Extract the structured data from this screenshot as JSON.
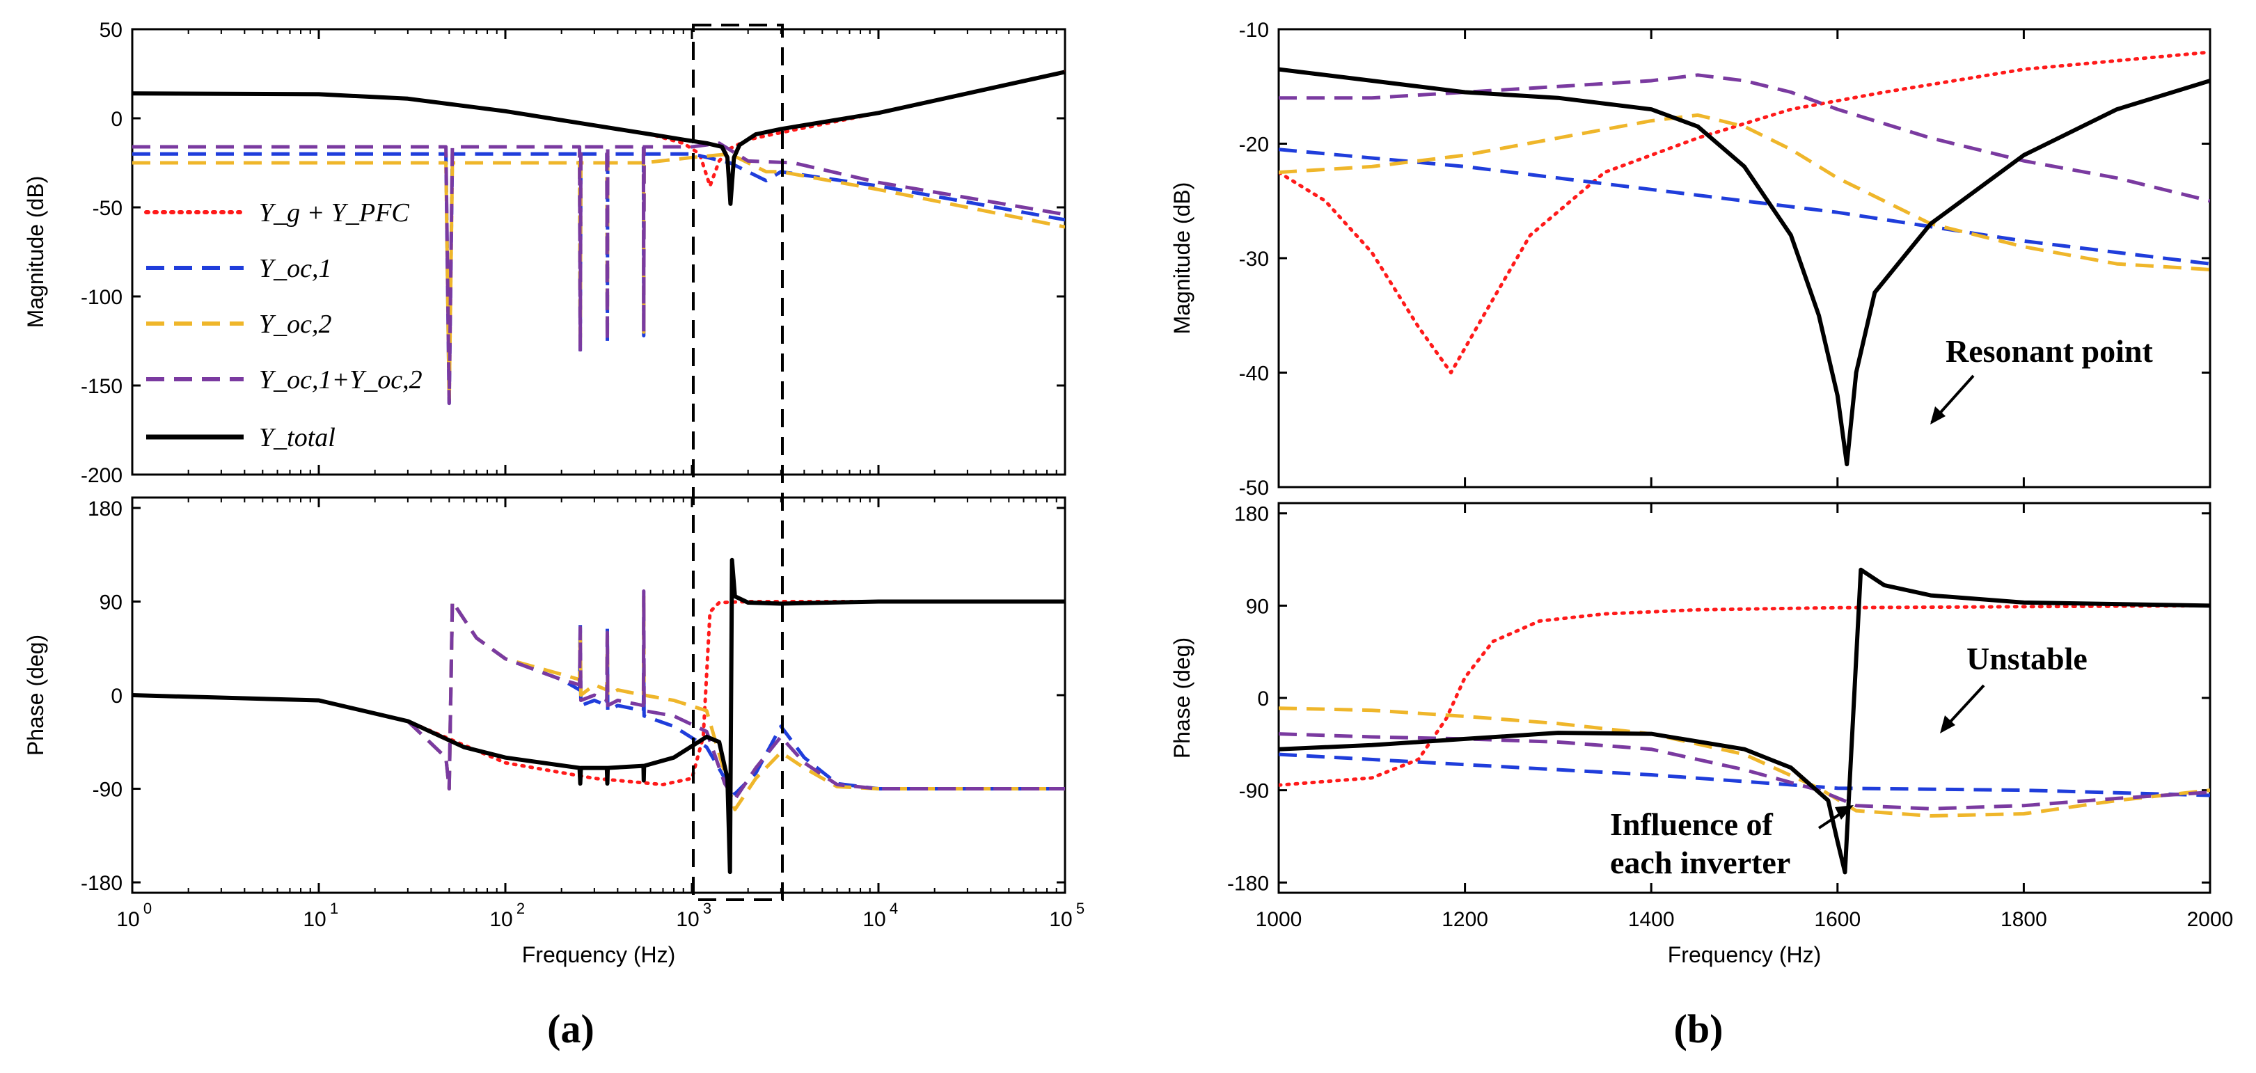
{
  "colors": {
    "grid_red": "#ff1a1a",
    "inv1_blue": "#1f3ddb",
    "inv2_yellow": "#efb62a",
    "sum_purple": "#7a3aa0",
    "total_black": "#000000"
  },
  "legend": [
    {
      "label": "Y_g + Y_PFC",
      "series": "grid_red"
    },
    {
      "label": "Y_oc,1",
      "series": "inv1_blue"
    },
    {
      "label": "Y_oc,2",
      "series": "inv2_yellow"
    },
    {
      "label": "Y_oc,1+Y_oc,2",
      "series": "sum_purple"
    },
    {
      "label": "Y_total",
      "series": "total_black"
    }
  ],
  "chart_data": [
    {
      "id": "a_mag",
      "type": "line",
      "xscale": "log",
      "xlim": [
        1,
        100000
      ],
      "ylim": [
        -200,
        50
      ],
      "ylabel": "Magnitude (dB)",
      "xlabel": "",
      "yticks": [
        "50",
        "0",
        "-50",
        "-100",
        "-150",
        "-200"
      ],
      "series": [
        {
          "name": "Y_g + Y_PFC",
          "color": "grid_red",
          "dash": "dot",
          "x": [
            1,
            10,
            30,
            100,
            300,
            600,
            900,
            1100,
            1250,
            1400,
            1600,
            2000,
            3000,
            10000,
            100000
          ],
          "y": [
            14,
            13.5,
            11,
            4,
            -4,
            -9,
            -14,
            -20,
            -38,
            -24,
            -17,
            -12,
            -8,
            3,
            26
          ]
        },
        {
          "name": "Y_oc,1",
          "color": "inv1_blue",
          "dash": "dash",
          "x": [
            1,
            48,
            50,
            52,
            100,
            250,
            252,
            254,
            350,
            352,
            354,
            550,
            552,
            554,
            1000,
            1600,
            2500,
            3000,
            10000,
            100000
          ],
          "y": [
            -20,
            -20,
            -160,
            -20,
            -20,
            -20,
            -132,
            -20,
            -20,
            -127,
            -20,
            -20,
            -122,
            -20,
            -20,
            -25,
            -35,
            -30,
            -38,
            -57
          ]
        },
        {
          "name": "Y_oc,2",
          "color": "inv2_yellow",
          "dash": "dash",
          "x": [
            1,
            48,
            50,
            52,
            100,
            250,
            252,
            254,
            350,
            352,
            354,
            550,
            552,
            554,
            1000,
            1600,
            2500,
            3000,
            10000,
            100000
          ],
          "y": [
            -25,
            -25,
            -160,
            -25,
            -25,
            -25,
            -130,
            -25,
            -25,
            -125,
            -25,
            -25,
            -120,
            -25,
            -22,
            -20,
            -30,
            -30,
            -40,
            -61
          ]
        },
        {
          "name": "Y_oc,1+Y_oc,2",
          "color": "sum_purple",
          "dash": "dash",
          "x": [
            1,
            48,
            50,
            52,
            100,
            250,
            252,
            254,
            350,
            352,
            354,
            550,
            552,
            554,
            1000,
            1400,
            2000,
            3500,
            10000,
            100000
          ],
          "y": [
            -16,
            -16,
            -160,
            -16,
            -16,
            -16,
            -130,
            -16,
            -16,
            -125,
            -16,
            -16,
            -120,
            -16,
            -16,
            -14,
            -24,
            -25,
            -36,
            -54
          ]
        },
        {
          "name": "Y_total",
          "color": "total_black",
          "dash": "solid",
          "x": [
            1,
            10,
            30,
            100,
            300,
            600,
            900,
            1200,
            1450,
            1550,
            1610,
            1680,
            1800,
            2200,
            3000,
            10000,
            100000
          ],
          "y": [
            14,
            13.5,
            11,
            4,
            -4,
            -9,
            -12,
            -14,
            -16,
            -22,
            -48,
            -22,
            -15,
            -9,
            -6,
            3,
            26
          ]
        }
      ]
    },
    {
      "id": "a_phase",
      "type": "line",
      "xscale": "log",
      "xlim": [
        1,
        100000
      ],
      "ylim": [
        -190,
        190
      ],
      "ylabel": "Phase (deg)",
      "xlabel": "Frequency  (Hz)",
      "yticks": [
        "180",
        "90",
        "0",
        "-90",
        "-180"
      ],
      "series": [
        {
          "name": "Y_g + Y_PFC",
          "color": "grid_red",
          "dash": "dot",
          "x": [
            1,
            10,
            30,
            100,
            300,
            700,
            1000,
            1150,
            1250,
            1400,
            2000,
            10000,
            100000
          ],
          "y": [
            0,
            -5,
            -25,
            -65,
            -80,
            -86,
            -80,
            -40,
            80,
            89,
            90,
            90,
            90
          ]
        },
        {
          "name": "Y_oc,1",
          "color": "inv1_blue",
          "dash": "dash",
          "x": [
            1,
            10,
            30,
            48,
            50,
            52,
            70,
            100,
            200,
            250,
            252,
            254,
            300,
            350,
            352,
            354,
            400,
            550,
            552,
            554,
            800,
            1200,
            1500,
            1700,
            2200,
            3000,
            4000,
            6000,
            10000,
            100000
          ],
          "y": [
            0,
            -5,
            -25,
            -60,
            -90,
            90,
            55,
            35,
            15,
            5,
            70,
            -10,
            -5,
            -10,
            65,
            -15,
            -10,
            -15,
            30,
            -20,
            -30,
            -50,
            -80,
            -95,
            -75,
            -30,
            -60,
            -85,
            -90,
            -90
          ]
        },
        {
          "name": "Y_oc,2",
          "color": "inv2_yellow",
          "dash": "dash",
          "x": [
            1,
            10,
            30,
            48,
            50,
            52,
            70,
            100,
            200,
            250,
            252,
            254,
            300,
            350,
            352,
            354,
            400,
            550,
            552,
            554,
            800,
            1200,
            1500,
            1700,
            2200,
            3000,
            4000,
            6000,
            10000,
            100000
          ],
          "y": [
            0,
            -5,
            -25,
            -60,
            -90,
            90,
            55,
            35,
            20,
            15,
            60,
            0,
            10,
            5,
            60,
            0,
            5,
            0,
            95,
            0,
            -5,
            -15,
            -75,
            -110,
            -80,
            -55,
            -70,
            -88,
            -90,
            -90
          ]
        },
        {
          "name": "Y_oc,1+Y_oc,2",
          "color": "sum_purple",
          "dash": "dash",
          "x": [
            1,
            10,
            30,
            48,
            50,
            52,
            70,
            100,
            200,
            250,
            252,
            254,
            300,
            350,
            352,
            354,
            400,
            550,
            552,
            554,
            800,
            1200,
            1500,
            1700,
            2200,
            3000,
            4000,
            6000,
            10000,
            100000
          ],
          "y": [
            0,
            -5,
            -25,
            -60,
            -90,
            90,
            55,
            35,
            15,
            10,
            65,
            -5,
            0,
            -5,
            60,
            -10,
            -5,
            -10,
            100,
            -15,
            -20,
            -35,
            -85,
            -100,
            -70,
            -40,
            -65,
            -86,
            -90,
            -90
          ]
        },
        {
          "name": "Y_total",
          "color": "total_black",
          "dash": "solid",
          "x": [
            1,
            10,
            30,
            60,
            100,
            250,
            252,
            254,
            350,
            352,
            354,
            550,
            552,
            554,
            800,
            1200,
            1400,
            1550,
            1600,
            1640,
            1700,
            2000,
            3000,
            10000,
            100000
          ],
          "y": [
            0,
            -5,
            -25,
            -50,
            -60,
            -70,
            -85,
            -70,
            -70,
            -85,
            -70,
            -68,
            -82,
            -68,
            -60,
            -40,
            -45,
            -80,
            -170,
            130,
            95,
            89,
            88,
            90,
            90
          ]
        }
      ]
    },
    {
      "id": "b_mag",
      "type": "line",
      "xscale": "linear",
      "xlim": [
        1000,
        2000
      ],
      "ylim": [
        -50,
        -10
      ],
      "ylabel": "Magnitude (dB)",
      "xlabel": "",
      "yticks": [
        "-10",
        "-20",
        "-30",
        "-40",
        "-50"
      ],
      "series": [
        {
          "name": "Y_g + Y_PFC",
          "color": "grid_red",
          "dash": "dot",
          "x": [
            1000,
            1050,
            1100,
            1150,
            1185,
            1220,
            1270,
            1350,
            1450,
            1550,
            1650,
            1800,
            2000
          ],
          "y": [
            -22.5,
            -25,
            -29.5,
            -36,
            -40,
            -35,
            -28,
            -22.5,
            -19.5,
            -17,
            -15.5,
            -13.5,
            -12
          ]
        },
        {
          "name": "Y_oc,1",
          "color": "inv1_blue",
          "dash": "dash",
          "x": [
            1000,
            1200,
            1400,
            1600,
            1800,
            2000
          ],
          "y": [
            -20.5,
            -22,
            -24,
            -26,
            -28.5,
            -30.5
          ]
        },
        {
          "name": "Y_oc,2",
          "color": "inv2_yellow",
          "dash": "dash",
          "x": [
            1000,
            1100,
            1200,
            1300,
            1400,
            1450,
            1500,
            1550,
            1600,
            1700,
            1800,
            1900,
            2000
          ],
          "y": [
            -22.5,
            -22,
            -21,
            -19.5,
            -18,
            -17.5,
            -18.5,
            -20.5,
            -23,
            -27,
            -29,
            -30.5,
            -31
          ]
        },
        {
          "name": "Y_oc,1+Y_oc,2",
          "color": "sum_purple",
          "dash": "dash",
          "x": [
            1000,
            1100,
            1200,
            1300,
            1400,
            1450,
            1500,
            1550,
            1600,
            1700,
            1800,
            1900,
            2000
          ],
          "y": [
            -16,
            -16,
            -15.5,
            -15,
            -14.5,
            -14,
            -14.5,
            -15.5,
            -17,
            -19.5,
            -21.5,
            -23,
            -25
          ]
        },
        {
          "name": "Y_total",
          "color": "total_black",
          "dash": "solid",
          "x": [
            1000,
            1100,
            1200,
            1300,
            1400,
            1450,
            1500,
            1550,
            1580,
            1600,
            1610,
            1620,
            1640,
            1700,
            1800,
            1900,
            2000
          ],
          "y": [
            -13.5,
            -14.5,
            -15.5,
            -16,
            -17,
            -18.5,
            -22,
            -28,
            -35,
            -42,
            -48,
            -40,
            -33,
            -27,
            -21,
            -17,
            -14.5
          ]
        }
      ]
    },
    {
      "id": "b_phase",
      "type": "line",
      "xscale": "linear",
      "xlim": [
        1000,
        2000
      ],
      "ylim": [
        -190,
        190
      ],
      "ylabel": "Phase (deg)",
      "xlabel": "Frequency  (Hz)",
      "yticks": [
        "180",
        "90",
        "0",
        "-90",
        "-180"
      ],
      "series": [
        {
          "name": "Y_g + Y_PFC",
          "color": "grid_red",
          "dash": "dot",
          "x": [
            1000,
            1100,
            1150,
            1180,
            1200,
            1230,
            1280,
            1350,
            1450,
            1600,
            2000
          ],
          "y": [
            -85,
            -78,
            -60,
            -20,
            20,
            55,
            75,
            82,
            86,
            88,
            90
          ]
        },
        {
          "name": "Y_oc,1",
          "color": "inv1_blue",
          "dash": "dash",
          "x": [
            1000,
            1200,
            1400,
            1600,
            1800,
            2000
          ],
          "y": [
            -55,
            -65,
            -75,
            -88,
            -90,
            -95
          ]
        },
        {
          "name": "Y_oc,2",
          "color": "inv2_yellow",
          "dash": "dash",
          "x": [
            1000,
            1100,
            1200,
            1300,
            1400,
            1500,
            1580,
            1620,
            1700,
            1800,
            1900,
            2000
          ],
          "y": [
            -10,
            -12,
            -18,
            -25,
            -35,
            -55,
            -88,
            -110,
            -115,
            -113,
            -100,
            -90
          ]
        },
        {
          "name": "Y_oc,1+Y_oc,2",
          "color": "sum_purple",
          "dash": "dash",
          "x": [
            1000,
            1100,
            1200,
            1300,
            1400,
            1500,
            1580,
            1620,
            1700,
            1800,
            1900,
            2000
          ],
          "y": [
            -35,
            -38,
            -40,
            -43,
            -50,
            -70,
            -90,
            -105,
            -108,
            -105,
            -98,
            -92
          ]
        },
        {
          "name": "Y_total",
          "color": "total_black",
          "dash": "solid",
          "x": [
            1000,
            1100,
            1200,
            1300,
            1400,
            1500,
            1550,
            1590,
            1600,
            1608,
            1625,
            1650,
            1700,
            1800,
            2000
          ],
          "y": [
            -50,
            -46,
            -40,
            -34,
            -35,
            -50,
            -68,
            -100,
            -140,
            -170,
            125,
            110,
            100,
            93,
            90
          ]
        }
      ]
    }
  ],
  "annotations": {
    "resonant": "Resonant point",
    "unstable": "Unstable",
    "influence_line1": "Influence of",
    "influence_line2": "each inverter"
  },
  "panel_labels": {
    "a": "(a)",
    "b": "(b)"
  }
}
